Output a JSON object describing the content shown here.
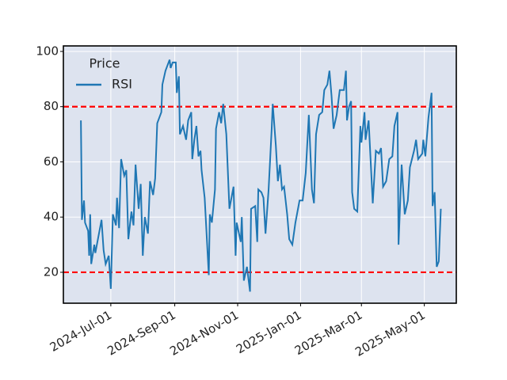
{
  "chart_data": {
    "type": "line",
    "x": [
      "2024-06-02",
      "2024-06-03",
      "2024-06-05",
      "2024-06-06",
      "2024-06-09",
      "2024-06-10",
      "2024-06-11",
      "2024-06-12",
      "2024-06-15",
      "2024-06-16",
      "2024-06-18",
      "2024-06-22",
      "2024-06-24",
      "2024-06-26",
      "2024-06-29",
      "2024-07-01",
      "2024-07-03",
      "2024-07-06",
      "2024-07-07",
      "2024-07-09",
      "2024-07-11",
      "2024-07-14",
      "2024-07-16",
      "2024-07-18",
      "2024-07-21",
      "2024-07-23",
      "2024-07-25",
      "2024-07-28",
      "2024-07-30",
      "2024-08-01",
      "2024-08-03",
      "2024-08-06",
      "2024-08-08",
      "2024-08-11",
      "2024-08-13",
      "2024-08-15",
      "2024-08-19",
      "2024-08-20",
      "2024-08-23",
      "2024-08-27",
      "2024-08-28",
      "2024-08-30",
      "2024-09-02",
      "2024-09-03",
      "2024-09-05",
      "2024-09-06",
      "2024-09-09",
      "2024-09-12",
      "2024-09-14",
      "2024-09-17",
      "2024-09-18",
      "2024-09-20",
      "2024-09-22",
      "2024-09-24",
      "2024-09-26",
      "2024-09-27",
      "2024-09-30",
      "2024-10-04",
      "2024-10-05",
      "2024-10-07",
      "2024-10-10",
      "2024-10-11",
      "2024-10-14",
      "2024-10-16",
      "2024-10-18",
      "2024-10-21",
      "2024-10-24",
      "2024-10-26",
      "2024-10-28",
      "2024-10-30",
      "2024-10-31",
      "2024-11-04",
      "2024-11-05",
      "2024-11-07",
      "2024-11-10",
      "2024-11-13",
      "2024-11-14",
      "2024-11-18",
      "2024-11-20",
      "2024-11-21",
      "2024-11-24",
      "2024-11-26",
      "2024-11-28",
      "2024-12-01",
      "2024-12-04",
      "2024-12-05",
      "2024-12-08",
      "2024-12-10",
      "2024-12-12",
      "2024-12-14",
      "2024-12-16",
      "2024-12-19",
      "2024-12-21",
      "2024-12-24",
      "2024-12-27",
      "2024-12-31",
      "2025-01-03",
      "2025-01-06",
      "2025-01-09",
      "2025-01-12",
      "2025-01-14",
      "2025-01-16",
      "2025-01-19",
      "2025-01-22",
      "2025-01-24",
      "2025-01-27",
      "2025-01-29",
      "2025-01-31",
      "2025-02-02",
      "2025-02-05",
      "2025-02-08",
      "2025-02-12",
      "2025-02-14",
      "2025-02-15",
      "2025-02-17",
      "2025-02-19",
      "2025-02-20",
      "2025-02-22",
      "2025-02-25",
      "2025-02-28",
      "2025-03-01",
      "2025-03-04",
      "2025-03-05",
      "2025-03-08",
      "2025-03-12",
      "2025-03-15",
      "2025-03-18",
      "2025-03-20",
      "2025-03-22",
      "2025-03-25",
      "2025-03-28",
      "2025-03-31",
      "2025-04-02",
      "2025-04-05",
      "2025-04-06",
      "2025-04-09",
      "2025-04-12",
      "2025-04-15",
      "2025-04-17",
      "2025-04-21",
      "2025-04-23",
      "2025-04-25",
      "2025-04-29",
      "2025-04-30",
      "2025-05-02",
      "2025-05-05",
      "2025-05-08",
      "2025-05-09",
      "2025-05-11",
      "2025-05-13",
      "2025-05-15",
      "2025-05-17"
    ],
    "series": [
      {
        "name": "RSI",
        "color": "#1f77b4",
        "values": [
          75,
          39,
          46,
          38,
          35,
          26,
          41,
          23,
          30,
          27,
          31,
          39,
          28,
          23,
          26,
          14,
          41,
          37,
          47,
          36,
          61,
          55,
          57,
          32,
          42,
          37,
          59,
          43,
          52,
          26,
          40,
          34,
          53,
          48,
          54,
          74,
          78,
          88,
          93,
          97,
          94,
          96,
          96,
          85,
          91,
          70,
          73,
          68,
          75,
          78,
          61,
          68,
          73,
          62,
          64,
          57,
          47,
          19,
          41,
          38,
          50,
          72,
          78,
          74,
          81,
          70,
          43,
          47,
          51,
          26,
          38,
          31,
          40,
          17,
          22,
          13,
          43,
          44,
          31,
          50,
          49,
          47,
          34,
          50,
          72,
          81,
          66,
          53,
          59,
          50,
          51,
          41,
          32,
          30,
          38,
          46,
          46,
          56,
          77,
          50,
          45,
          70,
          77,
          78,
          86,
          88,
          93,
          84,
          72,
          77,
          86,
          86,
          93,
          75,
          80,
          82,
          49,
          43,
          42,
          73,
          67,
          78,
          68,
          75,
          45,
          64,
          63,
          65,
          51,
          53,
          61,
          62,
          73,
          78,
          30,
          59,
          41,
          46,
          58,
          64,
          68,
          61,
          63,
          68,
          62,
          76,
          85,
          44,
          49,
          22,
          24,
          43
        ]
      }
    ],
    "legend_title": "Price",
    "legend": "upper left",
    "hlines": [
      80,
      20
    ],
    "hline_color": "#ff0000",
    "xlim": [
      "2024-05-16",
      "2025-06-01"
    ],
    "xticks": [
      {
        "value": "2024-07-01",
        "label": "2024-Jul-01"
      },
      {
        "value": "2024-09-01",
        "label": "2024-Sep-01"
      },
      {
        "value": "2024-11-01",
        "label": "2024-Nov-01"
      },
      {
        "value": "2025-01-01",
        "label": "2025-Jan-01"
      },
      {
        "value": "2025-03-01",
        "label": "2025-Mar-01"
      },
      {
        "value": "2025-05-01",
        "label": "2025-May-01"
      }
    ],
    "ylim": [
      8.8,
      102
    ],
    "yticks": [
      20,
      40,
      60,
      80,
      100
    ],
    "grid": true
  }
}
